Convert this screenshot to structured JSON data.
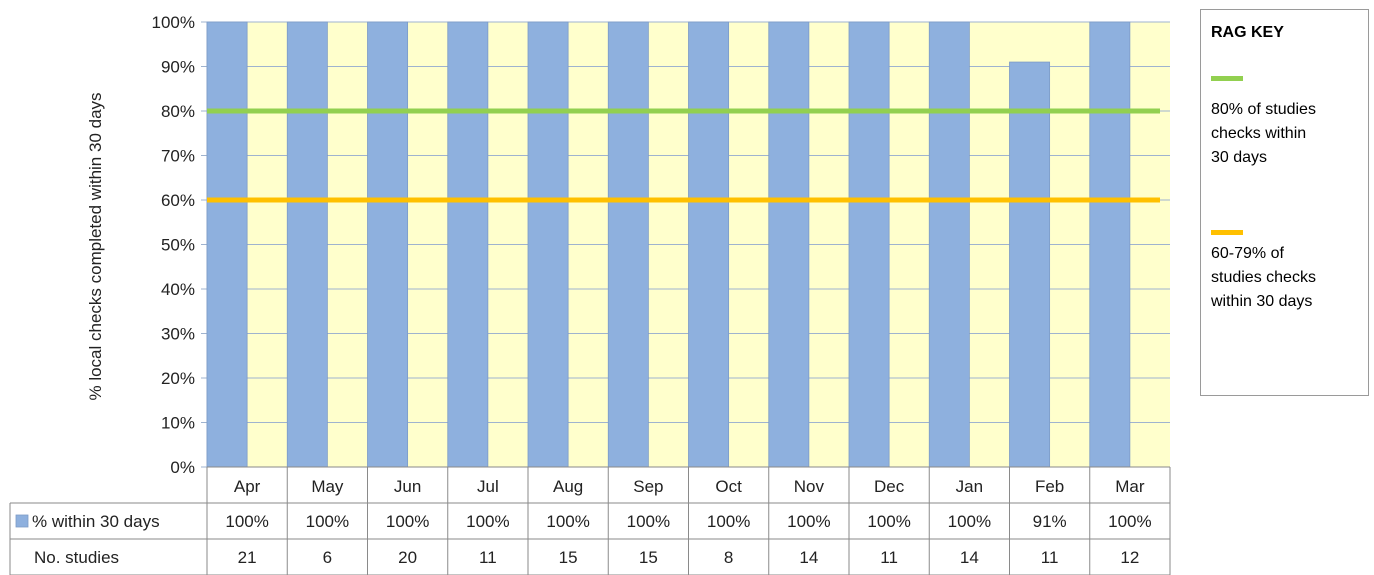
{
  "chart_data": {
    "type": "bar",
    "ylabel": "% local checks completed within 30 days",
    "ylim": [
      0,
      100
    ],
    "y_ticks": [
      "0%",
      "10%",
      "20%",
      "30%",
      "40%",
      "50%",
      "60%",
      "70%",
      "80%",
      "90%",
      "100%"
    ],
    "categories": [
      "Apr",
      "May",
      "Jun",
      "Jul",
      "Aug",
      "Sep",
      "Oct",
      "Nov",
      "Dec",
      "Jan",
      "Feb",
      "Mar"
    ],
    "series": [
      {
        "name": "% within 30 days",
        "values": [
          100,
          100,
          100,
          100,
          100,
          100,
          100,
          100,
          100,
          100,
          91,
          100
        ],
        "color": "#8eb0de"
      }
    ],
    "reference_lines": [
      {
        "value": 80,
        "color": "#92d050"
      },
      {
        "value": 60,
        "color": "#ffc000"
      }
    ],
    "grid": true,
    "plot_background": "#ffffcc",
    "data_table": {
      "rows": [
        {
          "label": "% within 30 days",
          "values": [
            "100%",
            "100%",
            "100%",
            "100%",
            "100%",
            "100%",
            "100%",
            "100%",
            "100%",
            "100%",
            "91%",
            "100%"
          ],
          "legend_key": true
        },
        {
          "label": "No. studies",
          "values": [
            "21",
            "6",
            "20",
            "11",
            "15",
            "15",
            "8",
            "14",
            "11",
            "14",
            "11",
            "12"
          ],
          "legend_key": false
        }
      ]
    }
  },
  "rag_key": {
    "title": "RAG KEY",
    "items": [
      {
        "color": "#92d050",
        "lines": [
          "80% of studies",
          "checks within",
          "30 days"
        ]
      },
      {
        "color": "#ffc000",
        "lines": [
          "60-79% of",
          "studies checks",
          "within 30 days"
        ]
      }
    ]
  }
}
